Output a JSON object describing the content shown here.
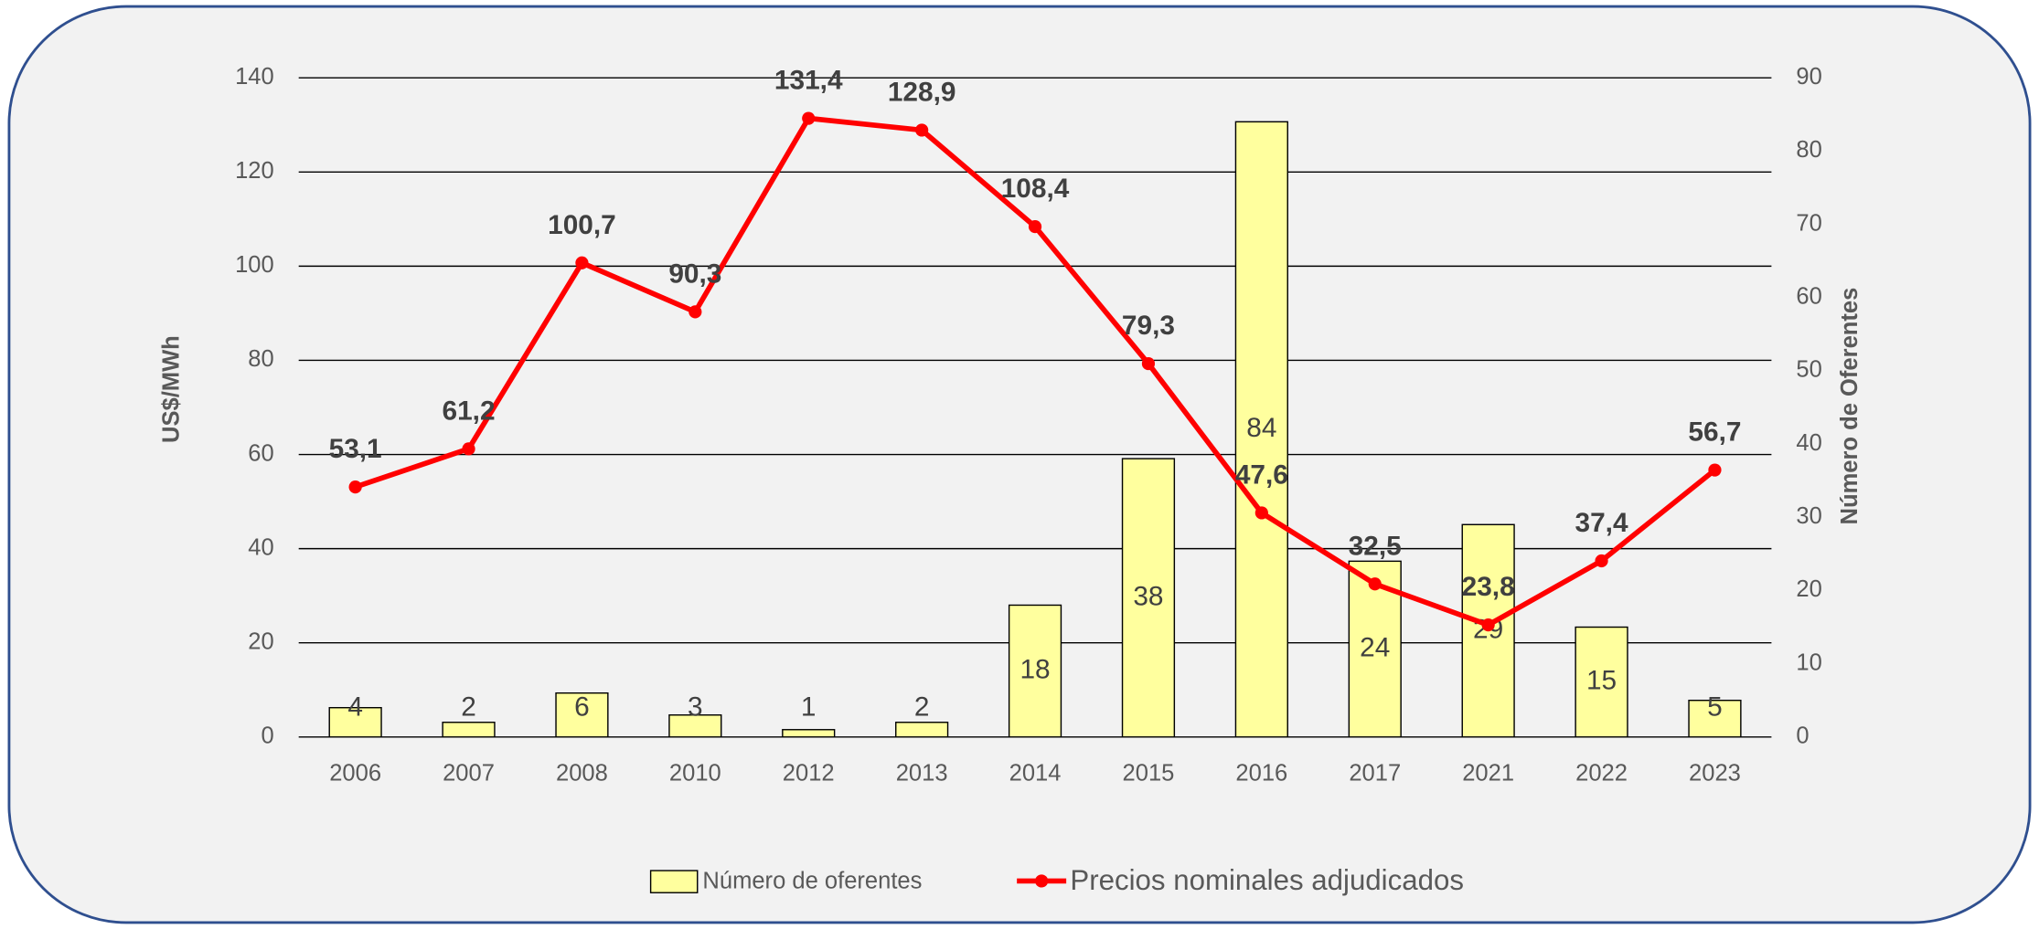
{
  "chart_data": {
    "type": "combo",
    "categories": [
      "2006",
      "2007",
      "2008",
      "2010",
      "2012",
      "2013",
      "2014",
      "2015",
      "2016",
      "2017",
      "2021",
      "2022",
      "2023"
    ],
    "series": [
      {
        "name": "Número de oferentes",
        "type": "bar",
        "axis": "y2",
        "color": "#ffff9e",
        "values": [
          4,
          2,
          6,
          3,
          1,
          2,
          18,
          38,
          84,
          24,
          29,
          15,
          5
        ]
      },
      {
        "name": "Precios nominales adjudicados",
        "type": "line",
        "axis": "y",
        "color": "#ff0000",
        "values": [
          53.1,
          61.2,
          100.7,
          90.3,
          131.4,
          128.9,
          108.4,
          79.3,
          47.6,
          32.5,
          23.8,
          37.4,
          56.7
        ],
        "value_labels": [
          "53,1",
          "61,2",
          "100,7",
          "90,3",
          "131,4",
          "128,9",
          "108,4",
          "79,3",
          "47,6",
          "32,5",
          "23,8",
          "37,4",
          "56,7"
        ]
      }
    ],
    "ylabel": "US$/MWh",
    "y2label": "Número de Oferentes",
    "ylim": [
      0,
      140
    ],
    "yticks": [
      0,
      20,
      40,
      60,
      80,
      100,
      120,
      140
    ],
    "y2lim": [
      0,
      90
    ],
    "y2ticks": [
      0,
      10,
      20,
      30,
      40,
      50,
      60,
      70,
      80,
      90
    ],
    "grid": true,
    "legend": "bottom"
  }
}
